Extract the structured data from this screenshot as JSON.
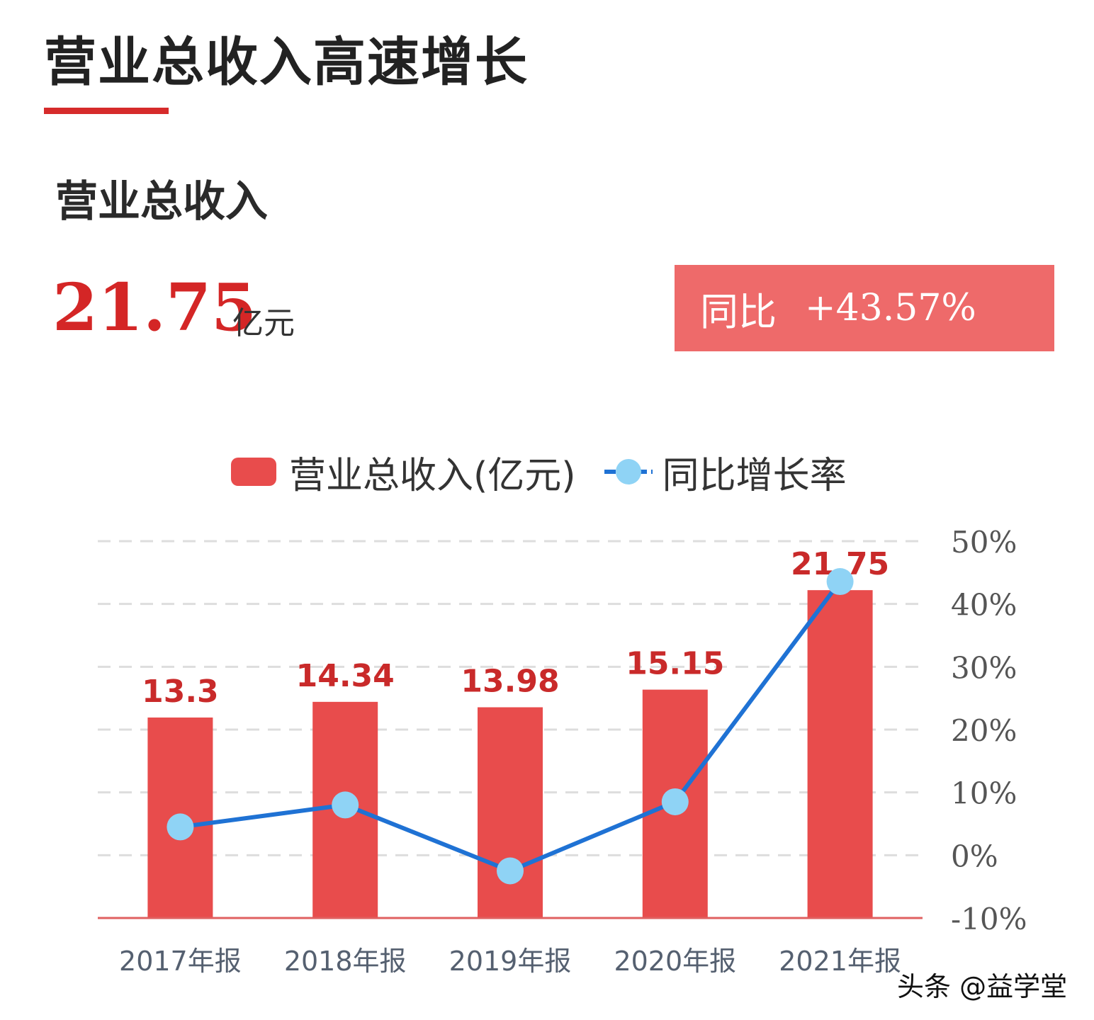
{
  "header": {
    "title": "营业总收入高速增长",
    "section_title": "营业总收入"
  },
  "kpi": {
    "value": "21.75",
    "unit": "亿元",
    "yoy_label": "同比",
    "yoy_value": "+43.57%"
  },
  "legend": {
    "bar_label": "营业总收入(亿元)",
    "line_label": "同比增长率"
  },
  "chart_data": {
    "type": "bar",
    "categories": [
      "2017年报",
      "2018年报",
      "2019年报",
      "2020年报",
      "2021年报"
    ],
    "series": [
      {
        "name": "营业总收入(亿元)",
        "type": "bar",
        "axis": "left",
        "values": [
          13.3,
          14.34,
          13.98,
          15.15,
          21.75
        ],
        "labels": [
          "13.3",
          "14.34",
          "13.98",
          "15.15",
          "21.75"
        ],
        "color": "#e84c4c"
      },
      {
        "name": "同比增长率",
        "type": "line",
        "axis": "right",
        "values": [
          4.5,
          8.0,
          -2.5,
          8.5,
          43.57
        ],
        "color": "#1f72d4",
        "marker_color": "#8fd3f5"
      }
    ],
    "y_left_range": [
      0,
      25
    ],
    "y_right_range": [
      -10,
      50
    ],
    "y_right_ticks": [
      "-10%",
      "0%",
      "10%",
      "20%",
      "30%",
      "40%",
      "50%"
    ],
    "y_right_tick_values": [
      -10,
      0,
      10,
      20,
      30,
      40,
      50
    ],
    "grid": true,
    "legend_position": "top"
  },
  "watermark": "头条 @益学堂"
}
